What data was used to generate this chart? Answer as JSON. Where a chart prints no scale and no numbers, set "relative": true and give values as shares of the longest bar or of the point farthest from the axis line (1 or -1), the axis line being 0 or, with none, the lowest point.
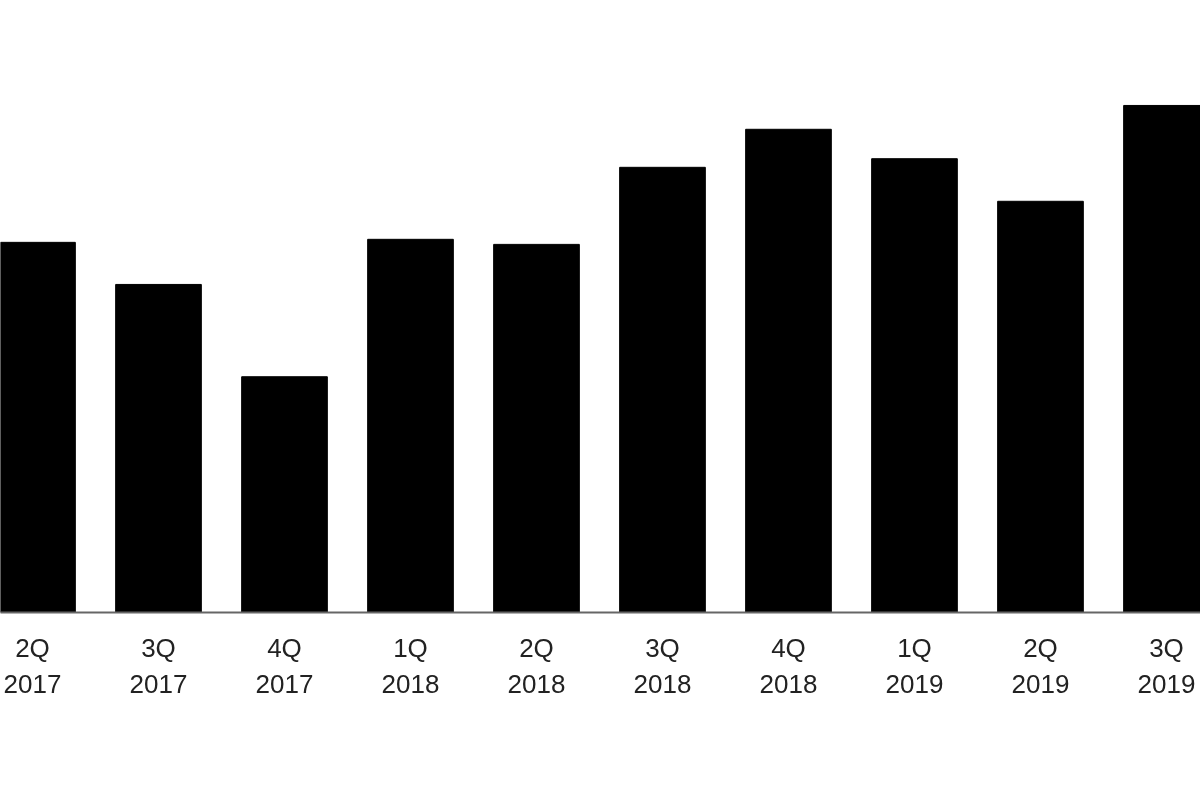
{
  "chart_data": {
    "type": "bar",
    "relative": true,
    "categories": [
      "2Q\n2017",
      "3Q\n2017",
      "4Q\n2017",
      "1Q\n2018",
      "2Q\n2018",
      "3Q\n2018",
      "4Q\n2018",
      "1Q\n2019",
      "2Q\n2019",
      "3Q\n2019"
    ],
    "values": [
      0.73,
      0.647,
      0.465,
      0.736,
      0.726,
      0.878,
      0.953,
      0.895,
      0.811,
      1.0
    ],
    "color": "#000000",
    "grid": false
  }
}
